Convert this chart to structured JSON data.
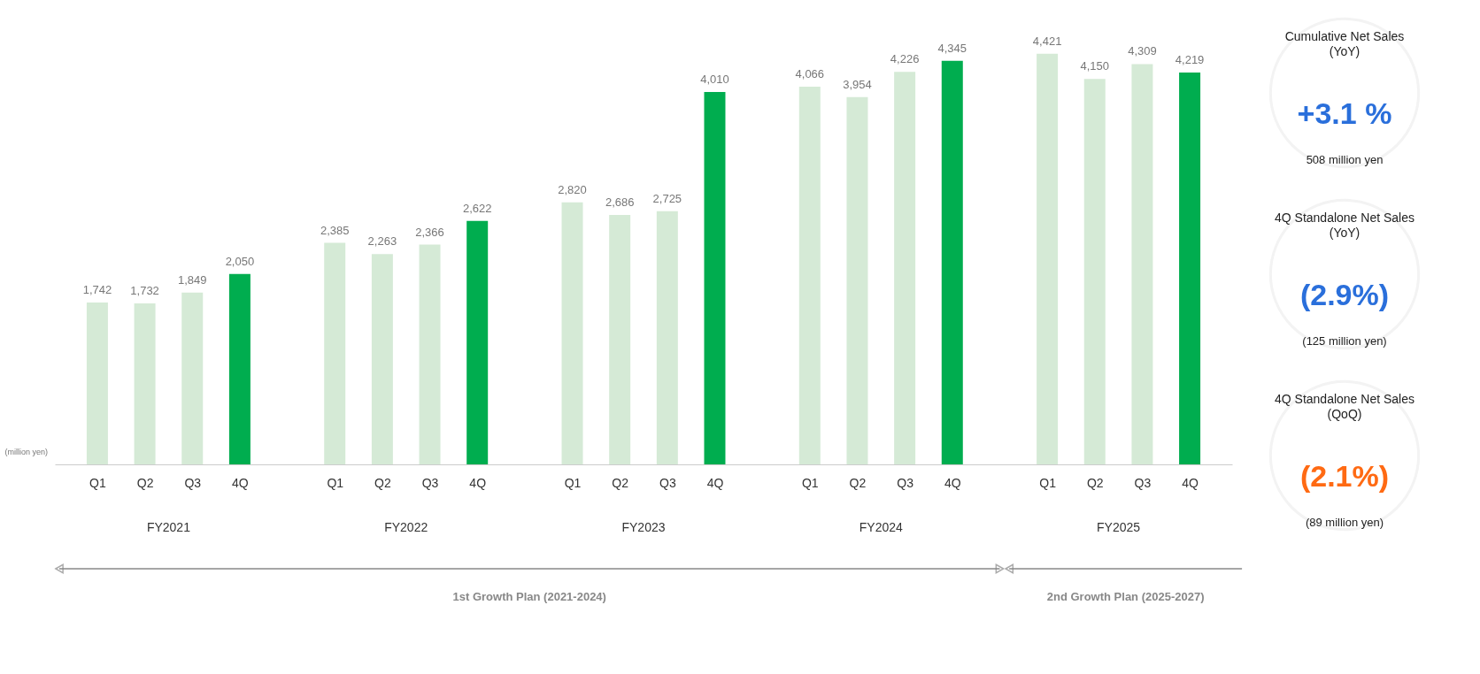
{
  "chart_data": {
    "type": "bar",
    "ylabel": "(million yen)",
    "categories": [
      "Q1",
      "Q2",
      "Q3",
      "4Q",
      "Q1",
      "Q2",
      "Q3",
      "4Q",
      "Q1",
      "Q2",
      "Q3",
      "4Q",
      "Q1",
      "Q2",
      "Q3",
      "4Q",
      "Q1",
      "Q2",
      "Q3",
      "4Q"
    ],
    "values": [
      1742,
      1732,
      1849,
      2050,
      2385,
      2263,
      2366,
      2622,
      2820,
      2686,
      2725,
      4010,
      4066,
      3954,
      4226,
      4345,
      4421,
      4150,
      4309,
      4219
    ],
    "colors": [
      "#d5ead6",
      "#d5ead6",
      "#d5ead6",
      "#00ad4f",
      "#d5ead6",
      "#d5ead6",
      "#d5ead6",
      "#00ad4f",
      "#d5ead6",
      "#d5ead6",
      "#d5ead6",
      "#00ad4f",
      "#d5ead6",
      "#d5ead6",
      "#d5ead6",
      "#00ad4f",
      "#d5ead6",
      "#d5ead6",
      "#d5ead6",
      "#00ad4f"
    ],
    "value_labels": [
      "1,742",
      "1,732",
      "1,849",
      "2,050",
      "2,385",
      "2,263",
      "2,366",
      "2,622",
      "2,820",
      "2,686",
      "2,725",
      "4,010",
      "4,066",
      "3,954",
      "4,226",
      "4,345",
      "4,421",
      "4,150",
      "4,309",
      "4,219"
    ],
    "grid": false,
    "annotations": [
      "FY2021",
      "FY2022",
      "FY2023",
      "FY2024",
      "FY2025",
      "1st Growth Plan (2021-2024)",
      "2nd Growth Plan (2025-2027)",
      "Cumulative Net Sales\n(YoY)",
      "+3.1 %",
      "508 million yen",
      "4Q Standalone Net Sales\n(YoY)",
      "(2.9%)",
      "(125 million yen)",
      "4Q Standalone Net Sales\n(QoQ)",
      "(2.1%)",
      "(89 million yen)"
    ]
  }
}
